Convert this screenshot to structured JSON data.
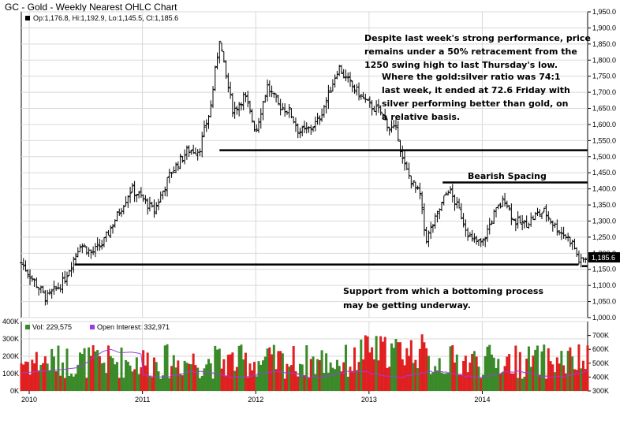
{
  "chart_title": "GC - Gold - Weekly Nearest OHLC Chart",
  "colors": {
    "up_volume": "#3a8a2a",
    "down_volume": "#e02020",
    "open_interest": "#9a3de0",
    "ohlc": "#000000",
    "grid": "#d8d8d8"
  },
  "chart_data": [
    {
      "type": "ohlc",
      "legend": "Op:1,176.8, Hi:1,192.9, Lo:1,145.5, Cl:1,185.6",
      "last_price_label": "1,185.6",
      "ylim": [
        1000,
        1950
      ],
      "y_ticks": [
        "1,000.0",
        "1,050.0",
        "1,100.0",
        "1,150.0",
        "1,200.0",
        "1,250.0",
        "1,300.0",
        "1,350.0",
        "1,400.0",
        "1,450.0",
        "1,500.0",
        "1,550.0",
        "1,600.0",
        "1,650.0",
        "1,700.0",
        "1,750.0",
        "1,800.0",
        "1,850.0",
        "1,900.0",
        "1,950.0"
      ],
      "x_ticks": [
        "2010",
        "2011",
        "2012",
        "2013",
        "2014"
      ],
      "x_tick_years": [
        2010,
        2011,
        2012,
        2013,
        2014
      ],
      "x_range": [
        2009.93,
        2014.93
      ],
      "close_anchors": [
        [
          2009.93,
          1170
        ],
        [
          2010.05,
          1110
        ],
        [
          2010.15,
          1060
        ],
        [
          2010.3,
          1110
        ],
        [
          2010.45,
          1230
        ],
        [
          2010.55,
          1200
        ],
        [
          2010.65,
          1230
        ],
        [
          2010.75,
          1300
        ],
        [
          2010.9,
          1400
        ],
        [
          2011.0,
          1370
        ],
        [
          2011.1,
          1330
        ],
        [
          2011.25,
          1450
        ],
        [
          2011.4,
          1520
        ],
        [
          2011.5,
          1520
        ],
        [
          2011.6,
          1650
        ],
        [
          2011.68,
          1870
        ],
        [
          2011.72,
          1780
        ],
        [
          2011.8,
          1640
        ],
        [
          2011.9,
          1690
        ],
        [
          2012.0,
          1580
        ],
        [
          2012.1,
          1720
        ],
        [
          2012.2,
          1660
        ],
        [
          2012.3,
          1640
        ],
        [
          2012.38,
          1580
        ],
        [
          2012.45,
          1580
        ],
        [
          2012.55,
          1610
        ],
        [
          2012.65,
          1700
        ],
        [
          2012.73,
          1780
        ],
        [
          2012.8,
          1740
        ],
        [
          2012.9,
          1700
        ],
        [
          2013.0,
          1660
        ],
        [
          2013.1,
          1640
        ],
        [
          2013.18,
          1590
        ],
        [
          2013.25,
          1580
        ],
        [
          2013.3,
          1480
        ],
        [
          2013.38,
          1420
        ],
        [
          2013.45,
          1380
        ],
        [
          2013.5,
          1240
        ],
        [
          2013.58,
          1300
        ],
        [
          2013.65,
          1360
        ],
        [
          2013.7,
          1400
        ],
        [
          2013.8,
          1330
        ],
        [
          2013.9,
          1240
        ],
        [
          2014.0,
          1230
        ],
        [
          2014.1,
          1320
        ],
        [
          2014.2,
          1370
        ],
        [
          2014.28,
          1300
        ],
        [
          2014.38,
          1290
        ],
        [
          2014.48,
          1320
        ],
        [
          2014.55,
          1330
        ],
        [
          2014.65,
          1280
        ],
        [
          2014.75,
          1250
        ],
        [
          2014.8,
          1230
        ],
        [
          2014.86,
          1170
        ],
        [
          2014.92,
          1186
        ]
      ],
      "open_interest_anchors": [
        [
          2009.93,
          430
        ],
        [
          2010.1,
          440
        ],
        [
          2010.3,
          455
        ],
        [
          2010.45,
          470
        ],
        [
          2010.55,
          530
        ],
        [
          2010.65,
          585
        ],
        [
          2010.72,
          600
        ],
        [
          2010.8,
          575
        ],
        [
          2010.9,
          580
        ],
        [
          2010.98,
          570
        ],
        [
          2011.0,
          560
        ]
      ],
      "horizontal_lines": [
        {
          "price": 1520,
          "x_from": 2011.68,
          "x_to": 2014.93
        },
        {
          "price": 1420,
          "x_from": 2013.65,
          "x_to": 2014.93
        },
        {
          "price": 1165,
          "x_from": 2010.4,
          "x_to": 2014.85
        },
        {
          "price": 1160,
          "x_from": 2014.88,
          "x_to": 2014.93
        }
      ],
      "annotations": {
        "retracement": [
          "Despite last week's strong performance, price",
          "remains under a 50% retracement from the",
          "1250 swing high to last Thursday's low."
        ],
        "ratio": [
          "Where the gold:silver ratio was 74:1",
          "last week, it ended at 72.6 Friday with",
          "silver performing better than gold, on",
          "a relative basis."
        ],
        "bearish": "Bearish Spacing",
        "support": [
          "Support from which a bottoming process",
          "may be getting underway."
        ]
      }
    },
    {
      "type": "bar",
      "volume_legend": "Vol: 229,575",
      "oi_legend": "Open Interest: 332,971",
      "left_ticks": [
        "0K",
        "100K",
        "200K",
        "300K",
        "400K"
      ],
      "left_lim": [
        0,
        400
      ],
      "right_ticks": [
        "300K",
        "400K",
        "500K",
        "600K",
        "700K"
      ],
      "right_lim": [
        300,
        800
      ]
    }
  ]
}
